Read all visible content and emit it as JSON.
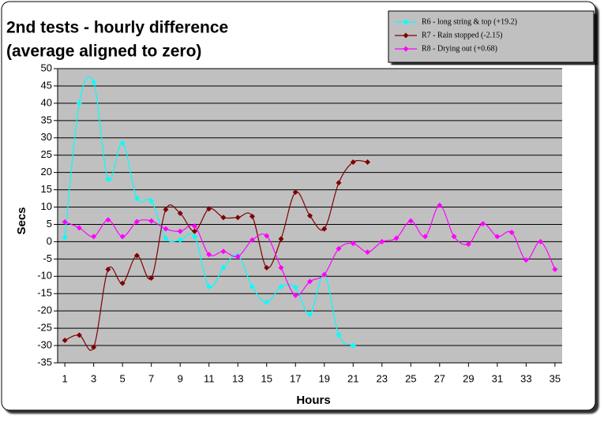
{
  "chart_data": {
    "type": "line",
    "title": "2nd tests - hourly difference",
    "subtitle": "(average aligned to zero)",
    "x_label": "Hours",
    "y_label": "Secs",
    "x": [
      1,
      2,
      3,
      4,
      5,
      6,
      7,
      8,
      9,
      10,
      11,
      12,
      13,
      14,
      15,
      16,
      17,
      18,
      19,
      20,
      21,
      22,
      23,
      24,
      25,
      26,
      27,
      28,
      29,
      30,
      31,
      32,
      33,
      34,
      35
    ],
    "xlim": [
      0.5,
      35.5
    ],
    "xticks": [
      1,
      3,
      5,
      7,
      9,
      11,
      13,
      15,
      17,
      19,
      21,
      23,
      25,
      27,
      29,
      31,
      33,
      35
    ],
    "ylim": [
      -35,
      50
    ],
    "yticks": [
      -35,
      -30,
      -25,
      -20,
      -15,
      -10,
      -5,
      0,
      5,
      10,
      15,
      20,
      25,
      30,
      35,
      40,
      45,
      50
    ],
    "grid": true,
    "legend": "top-right",
    "smooth": true,
    "series": [
      {
        "name": "R6 - long string & top (+19.2)",
        "color": "#00ffff",
        "values": [
          1.2,
          40,
          46,
          18,
          28.5,
          12.5,
          11.8,
          1,
          0.5,
          1.5,
          -13,
          -7.5,
          -4,
          -13,
          -17.5,
          -13,
          -13.2,
          -21,
          -9.5,
          -27,
          -30,
          null,
          null,
          null,
          null,
          null,
          null,
          null,
          null,
          null,
          null,
          null,
          null,
          null,
          null
        ]
      },
      {
        "name": "R7 - Rain stopped (-2.15)",
        "color": "#800000",
        "values": [
          -28.5,
          -27,
          -30.5,
          -8,
          -12,
          -4,
          -10.5,
          9.3,
          8.2,
          3,
          9.5,
          7,
          7,
          7.3,
          -7.5,
          0.8,
          14.3,
          7.5,
          3.7,
          17,
          23,
          23,
          null,
          null,
          null,
          null,
          null,
          null,
          null,
          null,
          null,
          null,
          null,
          null,
          null
        ]
      },
      {
        "name": "R8 - Drying out (+0.68)",
        "color": "#ff00ff",
        "values": [
          5.7,
          4,
          1.5,
          6.3,
          1.5,
          5.8,
          6,
          3.7,
          3,
          4.5,
          -3.7,
          -2.8,
          -4.3,
          0.5,
          1.7,
          -7.5,
          -15.5,
          -11.5,
          -9.5,
          -2,
          -0.5,
          -3,
          0,
          1,
          6,
          1.5,
          10.5,
          1.5,
          -0.7,
          5.2,
          1.5,
          2.7,
          -5.3,
          0,
          -8
        ]
      }
    ]
  }
}
